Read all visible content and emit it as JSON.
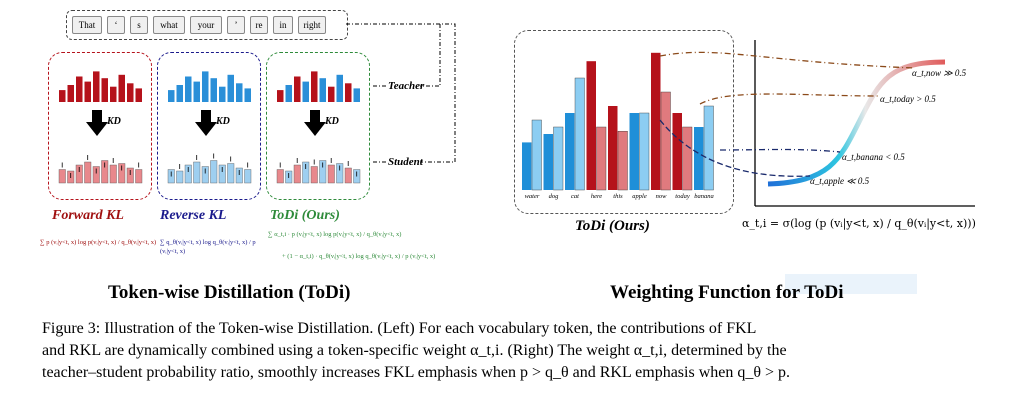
{
  "tokens": [
    "That",
    "‘",
    "s",
    "what",
    "your",
    "’",
    "re",
    "in",
    "right"
  ],
  "left": {
    "teacher_label": "Teacher",
    "student_label": "Student",
    "kd_label": "KD",
    "methods": [
      {
        "name": "Forward KL",
        "color": "#a01010",
        "formula_lines": [
          "∑ p (vᵢ|y<t, x) log p(vᵢ|y<t, x) / q_θ(vᵢ|y<t, x)"
        ]
      },
      {
        "name": "Reverse KL",
        "color": "#1a1a8c",
        "formula_lines": [
          "∑ q_θ(vᵢ|y<t, x) log q_θ(vᵢ|y<t, x) / p (vᵢ|y<t, x)"
        ]
      },
      {
        "name": "ToDi (Ours)",
        "color": "#2e8b3a",
        "formula_lines": [
          "∑ α_t,i · p (vᵢ|y<t, x) log p(vᵢ|y<t, x) / q_θ(vᵢ|y<t, x)",
          "+ (1 − α_t,i) · q_θ(vᵢ|y<t, x) log q_θ(vᵢ|y<t, x) / p (vᵢ|y<t, x)"
        ]
      }
    ],
    "title": "Token-wise Distillation (ToDi)"
  },
  "right": {
    "x_labels": [
      "water",
      "dog",
      "cat",
      "here",
      "this",
      "apple",
      "now",
      "today",
      "banana"
    ],
    "inner_label": "ToDi (Ours)",
    "annotations": [
      "α_t,now ≫ 0.5",
      "α_t,today > 0.5",
      "α_t,banana < 0.5",
      "α_t,apple ≪ 0.5"
    ],
    "equation": "α_t,i = σ(log (p (vᵢ|y<t, x) / q_θ(vᵢ|y<t, x)))",
    "title": "Weighting Function for ToDi"
  },
  "caption": {
    "line1": "Figure 3: Illustration of the Token-wise Distillation. (Left) For each vocabulary token, the contributions of FKL",
    "line2": "and RKL are dynamically combined using a token-specific weight α_t,i. (Right) The weight α_t,i, determined by the",
    "line3": "teacher–student probability ratio, smoothly increases FKL emphasis when p > q_θ and RKL emphasis when q_θ > p."
  },
  "colors": {
    "forward": "#b5121b",
    "reverse": "#2a8fd8",
    "todi": "#2e8b3a"
  }
}
